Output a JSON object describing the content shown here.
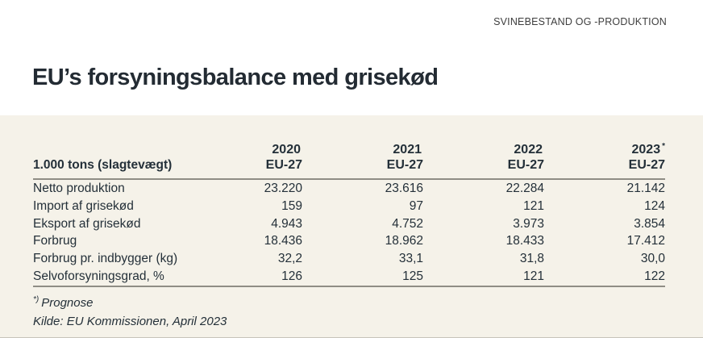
{
  "page": {
    "running_head": "SVINEBESTAND OG -PRODUKTION",
    "title": "EU’s forsyningsbalance med grisekød"
  },
  "table": {
    "unit_header": "1.000 tons (slagtevægt)",
    "columns": [
      {
        "year": "2020",
        "region": "EU-27",
        "note": ""
      },
      {
        "year": "2021",
        "region": "EU-27",
        "note": ""
      },
      {
        "year": "2022",
        "region": "EU-27",
        "note": ""
      },
      {
        "year": "2023",
        "region": "EU-27",
        "note": "*"
      }
    ],
    "rows": [
      {
        "label": "Netto produktion",
        "values": [
          "23.220",
          "23.616",
          "22.284",
          "21.142"
        ]
      },
      {
        "label": "Import af grisekød",
        "values": [
          "159",
          "97",
          "121",
          "124"
        ]
      },
      {
        "label": "Eksport af grisekød",
        "values": [
          "4.943",
          "4.752",
          "3.973",
          "3.854"
        ]
      },
      {
        "label": "Forbrug",
        "values": [
          "18.436",
          "18.962",
          "18.433",
          "17.412"
        ]
      },
      {
        "label": "Forbrug pr. indbygger (kg)",
        "values": [
          "32,2",
          "33,1",
          "31,8",
          "30,0"
        ]
      },
      {
        "label": "Selvoforsyningsgrad, %",
        "values": [
          "126",
          "125",
          "121",
          "122"
        ]
      }
    ]
  },
  "footnotes": {
    "marker": "*)",
    "note": "Prognose",
    "source": "Kilde: EU Kommissionen, April 2023"
  },
  "colors": {
    "panel_background": "#f5f2e9",
    "text": "#243039",
    "rule": "#8f8d85"
  }
}
